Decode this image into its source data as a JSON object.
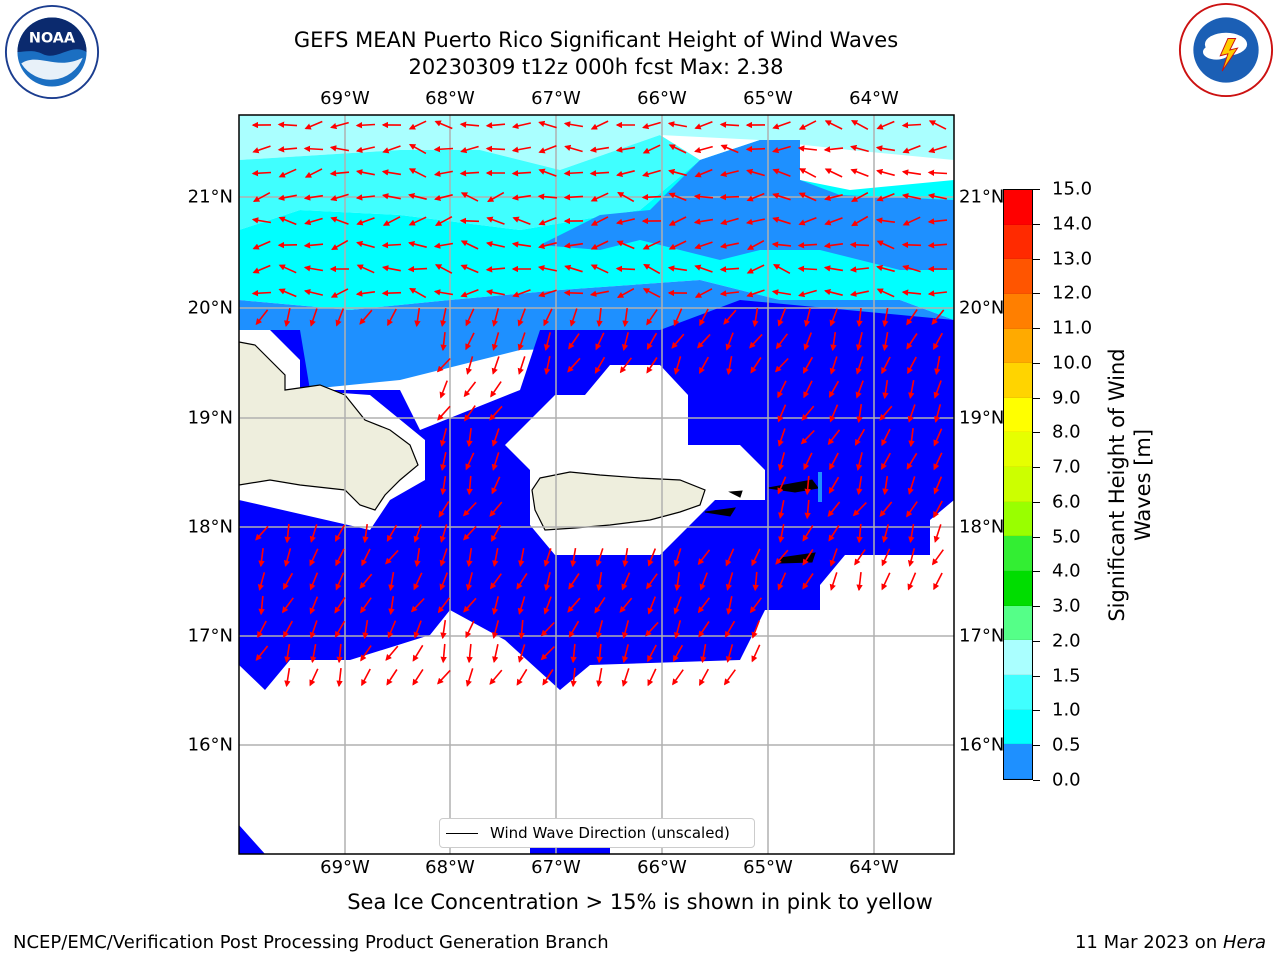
{
  "header": {
    "title_line1": "GEFS MEAN Puerto Rico Significant Height of Wind Waves",
    "title_line2": "20230309 t12z 000h fcst   Max: 2.38"
  },
  "logos": {
    "left": "NOAA",
    "left_ring": "NATIONAL OCEANIC AND ATMOSPHERIC ADMINISTRATION · U.S. DEPARTMENT OF COMMERCE",
    "right_ring": "NATIONAL WEATHER SERVICE"
  },
  "map": {
    "longitudes": [
      "69°W",
      "68°W",
      "67°W",
      "66°W",
      "65°W",
      "64°W"
    ],
    "latitudes": [
      "21°N",
      "20°N",
      "19°N",
      "18°N",
      "17°N",
      "16°N"
    ],
    "legend_label": "Wind Wave Direction (unscaled)",
    "colors": {
      "land": "#eeeedd",
      "band_0_0_5": "#0000ff",
      "band_0_5_1_0": "#1e90ff",
      "band_1_0_1_5": "#00ffff",
      "band_1_5_2_0": "#40ffff",
      "band_2_0_3_0": "#aaffff",
      "arrow": "#ff0000",
      "grid": "#b0b0b0"
    }
  },
  "colorbar": {
    "label_line1": "Significant Height of Wind",
    "label_line2": "Waves [m]",
    "ticks": [
      "15.0",
      "14.0",
      "13.0",
      "12.0",
      "11.0",
      "10.0",
      "9.0",
      "8.0",
      "7.0",
      "6.0",
      "5.0",
      "4.0",
      "3.0",
      "2.0",
      "1.5",
      "1.0",
      "0.5",
      "0.0"
    ],
    "colors_top_to_bottom": [
      "#ff0000",
      "#ff2a00",
      "#ff5500",
      "#ff7f00",
      "#ffaa00",
      "#ffd400",
      "#ffff00",
      "#e6ff00",
      "#ccff00",
      "#99ff00",
      "#33ee33",
      "#00dd00",
      "#55ff88",
      "#aaffff",
      "#40ffff",
      "#00ffff",
      "#1e90ff",
      "#0000ff"
    ]
  },
  "notes": {
    "sea_ice": "Sea Ice Concentration > 15% is shown in pink to yellow"
  },
  "footer": {
    "left": "NCEP/EMC/Verification Post Processing Product Generation Branch",
    "right_date": "11 Mar 2023 on ",
    "right_host": "Hera"
  }
}
